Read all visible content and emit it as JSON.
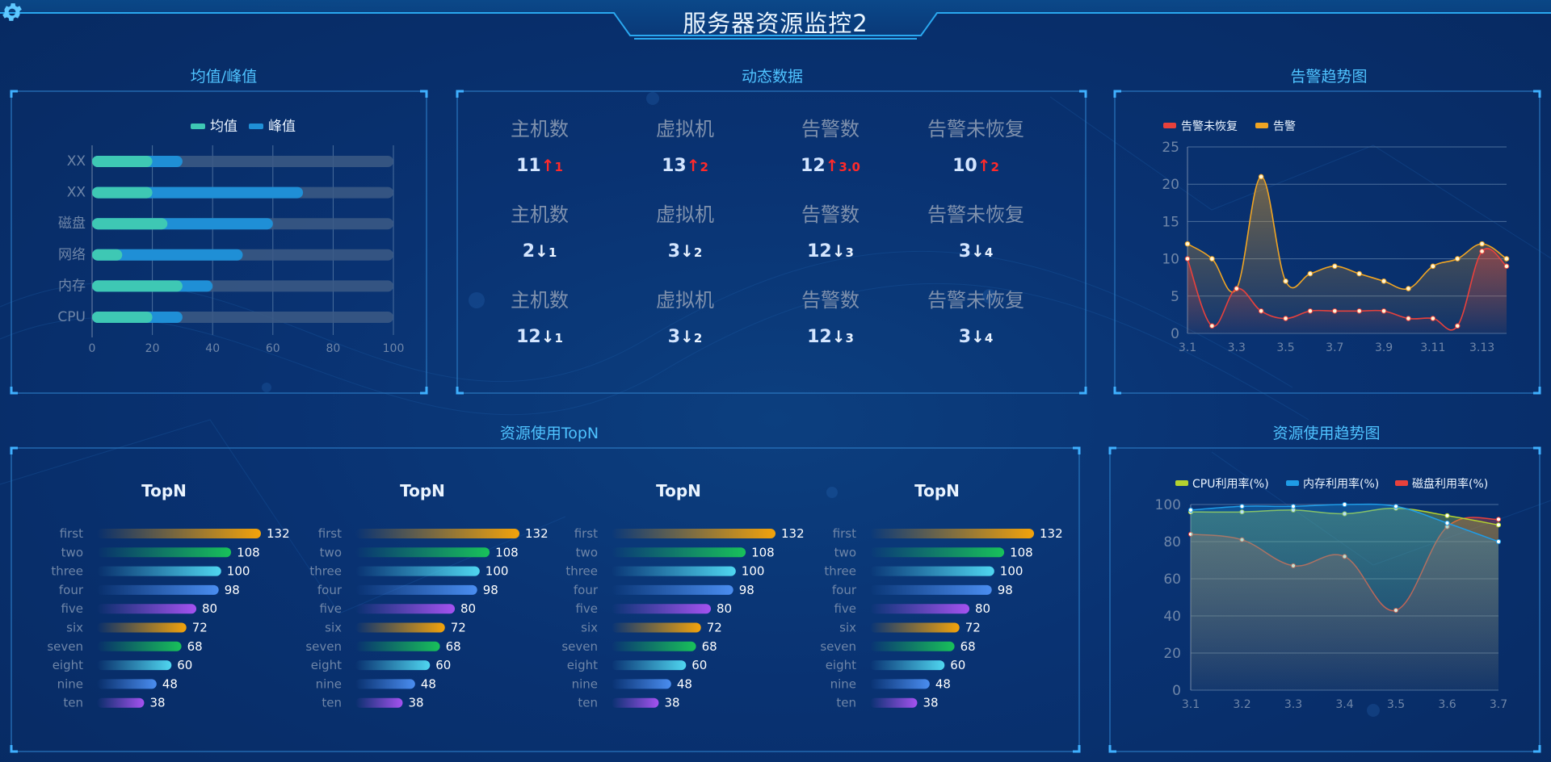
{
  "header": {
    "title": "服务器资源监控2"
  },
  "panels": {
    "avg_peak": {
      "title": "均值/峰值"
    },
    "dynamic": {
      "title": "动态数据"
    },
    "alarm": {
      "title": "告警趋势图"
    },
    "topn": {
      "title": "资源使用TopN"
    },
    "usage": {
      "title": "资源使用趋势图"
    }
  },
  "colors": {
    "accent": "#4fc3ff",
    "avg": "#3ec8b4",
    "peak": "#1f8fd6",
    "track": "#3c5a85",
    "alarm_unrecovered": "#e8413c",
    "alarm": "#f0a523",
    "cpu": "#b4d32f",
    "mem": "#1f9ce6",
    "disk": "#e8413c"
  },
  "dynamic": {
    "rows": [
      [
        {
          "label": "主机数",
          "value": "11",
          "dir": "up",
          "delta": "1"
        },
        {
          "label": "虚拟机",
          "value": "13",
          "dir": "up",
          "delta": "2"
        },
        {
          "label": "告警数",
          "value": "12",
          "dir": "up",
          "delta": "3.0"
        },
        {
          "label": "告警未恢复",
          "value": "10",
          "dir": "up",
          "delta": "2"
        }
      ],
      [
        {
          "label": "主机数",
          "value": "2",
          "dir": "down",
          "delta": "1"
        },
        {
          "label": "虚拟机",
          "value": "3",
          "dir": "down",
          "delta": "2"
        },
        {
          "label": "告警数",
          "value": "12",
          "dir": "down",
          "delta": "3"
        },
        {
          "label": "告警未恢复",
          "value": "3",
          "dir": "down",
          "delta": "4"
        }
      ],
      [
        {
          "label": "主机数",
          "value": "12",
          "dir": "down",
          "delta": "1"
        },
        {
          "label": "虚拟机",
          "value": "3",
          "dir": "down",
          "delta": "2"
        },
        {
          "label": "告警数",
          "value": "12",
          "dir": "down",
          "delta": "3"
        },
        {
          "label": "告警未恢复",
          "value": "3",
          "dir": "down",
          "delta": "4"
        }
      ]
    ]
  },
  "chart_data": [
    {
      "id": "avg_peak",
      "type": "bar",
      "orientation": "horizontal",
      "categories": [
        "XX",
        "XX",
        "磁盘",
        "网络",
        "内存",
        "CPU"
      ],
      "series": [
        {
          "name": "均值",
          "values": [
            20,
            20,
            25,
            10,
            30,
            20
          ]
        },
        {
          "name": "峰值",
          "values": [
            30,
            70,
            60,
            50,
            40,
            30
          ]
        }
      ],
      "track_max": 100,
      "xlim": [
        0,
        100
      ],
      "xticks": [
        "0",
        "20",
        "40",
        "60",
        "80",
        "100"
      ],
      "grid": true,
      "legend": "top-center"
    },
    {
      "id": "alarm_trend",
      "type": "line",
      "x": [
        "3.1",
        "3.2",
        "3.3",
        "3.4",
        "3.5",
        "3.6",
        "3.7",
        "3.8",
        "3.9",
        "3.10",
        "3.11",
        "3.12",
        "3.13",
        "3.14"
      ],
      "xtick_labels": [
        "3.1",
        "3.3",
        "3.5",
        "3.7",
        "3.9",
        "3.11",
        "3.13"
      ],
      "series": [
        {
          "name": "告警未恢复",
          "values": [
            10,
            1,
            6,
            3,
            2,
            3,
            3,
            3,
            3,
            2,
            2,
            1,
            11,
            9
          ]
        },
        {
          "name": "告警",
          "values": [
            12,
            10,
            6,
            21,
            7,
            8,
            9,
            8,
            7,
            6,
            9,
            10,
            12,
            10
          ]
        }
      ],
      "ylim": [
        0,
        25
      ],
      "yticks": [
        "0",
        "5",
        "10",
        "15",
        "20",
        "25"
      ],
      "grid": true,
      "legend": "top-left"
    },
    {
      "id": "topn_1",
      "type": "bar",
      "orientation": "horizontal",
      "title": "TopN",
      "categories": [
        "first",
        "two",
        "three",
        "four",
        "five",
        "six",
        "seven",
        "eight",
        "nine",
        "ten"
      ],
      "values": [
        132,
        108,
        100,
        98,
        80,
        72,
        68,
        60,
        48,
        38
      ]
    },
    {
      "id": "topn_2",
      "type": "bar",
      "orientation": "horizontal",
      "title": "TopN",
      "categories": [
        "first",
        "two",
        "three",
        "four",
        "five",
        "six",
        "seven",
        "eight",
        "nine",
        "ten"
      ],
      "values": [
        132,
        108,
        100,
        98,
        80,
        72,
        68,
        60,
        48,
        38
      ]
    },
    {
      "id": "topn_3",
      "type": "bar",
      "orientation": "horizontal",
      "title": "TopN",
      "categories": [
        "first",
        "two",
        "three",
        "four",
        "five",
        "six",
        "seven",
        "eight",
        "nine",
        "ten"
      ],
      "values": [
        132,
        108,
        100,
        98,
        80,
        72,
        68,
        60,
        48,
        38
      ]
    },
    {
      "id": "topn_4",
      "type": "bar",
      "orientation": "horizontal",
      "title": "TopN",
      "categories": [
        "first",
        "two",
        "three",
        "four",
        "five",
        "six",
        "seven",
        "eight",
        "nine",
        "ten"
      ],
      "values": [
        132,
        108,
        100,
        98,
        80,
        72,
        68,
        60,
        48,
        38
      ]
    },
    {
      "id": "usage_trend",
      "type": "area",
      "x": [
        "3.1",
        "3.2",
        "3.3",
        "3.4",
        "3.5",
        "3.6",
        "3.7"
      ],
      "series": [
        {
          "name": "CPU利用率(%)",
          "values": [
            96,
            96,
            97,
            95,
            98,
            94,
            89
          ]
        },
        {
          "name": "内存利用率(%)",
          "values": [
            97,
            99,
            99,
            100,
            99,
            90,
            80
          ]
        },
        {
          "name": "磁盘利用率(%)",
          "values": [
            84,
            81,
            67,
            72,
            43,
            88,
            92
          ]
        }
      ],
      "ylim": [
        0,
        100
      ],
      "yticks": [
        "0",
        "20",
        "40",
        "60",
        "80",
        "100"
      ],
      "grid": true,
      "legend": "top-center"
    }
  ]
}
